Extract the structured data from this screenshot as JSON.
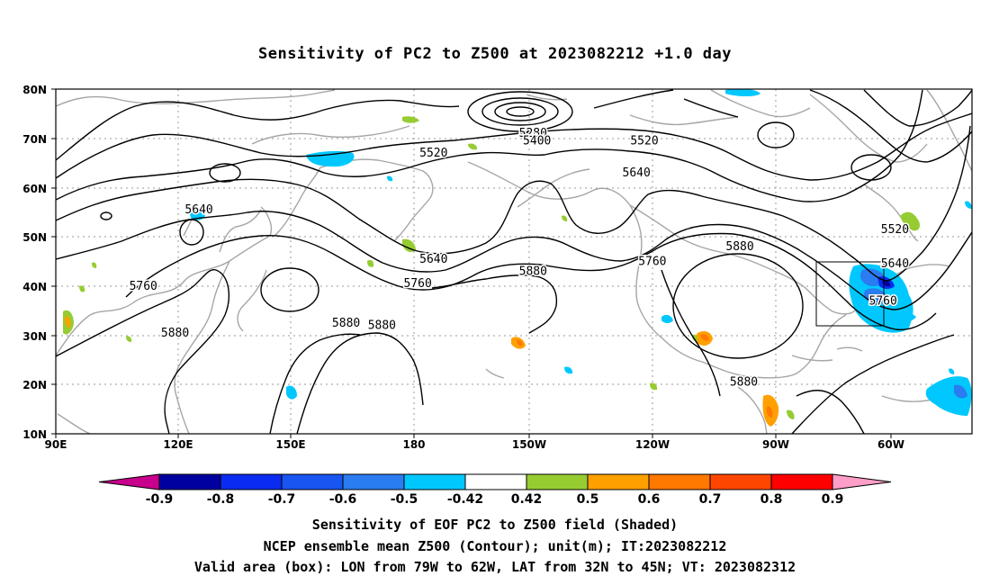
{
  "title": "Sensitivity of PC2 to Z500 at 2023082212 +1.0 day",
  "footer": {
    "line1": "Sensitivity of EOF PC2 to Z500 field (Shaded)",
    "line2": "NCEP ensemble mean Z500 (Contour); unit(m); IT:2023082212",
    "line3": "Valid area (box): LON from 79W to 62W, LAT from 32N to 45N; VT: 2023082312"
  },
  "map": {
    "lat_labels": [
      "80N",
      "70N",
      "60N",
      "50N",
      "40N",
      "30N",
      "20N",
      "10N"
    ],
    "lon_labels": [
      "90E",
      "120E",
      "150E",
      "180",
      "150W",
      "120W",
      "90W",
      "60W"
    ],
    "contour_labels": [
      {
        "text": "5280",
        "lon": -150,
        "lat": 71
      },
      {
        "text": "5400",
        "lon": -149,
        "lat": 69.5
      },
      {
        "text": "5520",
        "lon": -175,
        "lat": 67
      },
      {
        "text": "5520",
        "lon": -122,
        "lat": 69.5
      },
      {
        "text": "5640",
        "lon": -124,
        "lat": 63
      },
      {
        "text": "5520",
        "lon": -59,
        "lat": 51.5
      },
      {
        "text": "5640",
        "lon": 126,
        "lat": 55.5
      },
      {
        "text": "5640",
        "lon": -175,
        "lat": 45.5
      },
      {
        "text": "5640",
        "lon": -59,
        "lat": 44.5
      },
      {
        "text": "5760",
        "lon": 112,
        "lat": 40
      },
      {
        "text": "5760",
        "lon": -179,
        "lat": 40.5
      },
      {
        "text": "5760",
        "lon": -120,
        "lat": 45
      },
      {
        "text": "5760",
        "lon": -62,
        "lat": 37
      },
      {
        "text": "5880",
        "lon": -150,
        "lat": 43
      },
      {
        "text": "5880",
        "lon": -98,
        "lat": 48
      },
      {
        "text": "5880",
        "lon": 120,
        "lat": 30.5
      },
      {
        "text": "5880",
        "lon": 163,
        "lat": 32.5
      },
      {
        "text": "5880",
        "lon": 172,
        "lat": 32
      },
      {
        "text": "5880",
        "lon": -97,
        "lat": 20.5
      }
    ],
    "valid_box": {
      "lon_west": -79,
      "lon_east": -62,
      "lat_south": 32,
      "lat_north": 45
    }
  },
  "colorbar": {
    "labels": [
      "-0.9",
      "-0.8",
      "-0.7",
      "-0.6",
      "-0.5",
      "-0.42",
      "0.42",
      "0.5",
      "0.6",
      "0.7",
      "0.8",
      "0.9"
    ],
    "colors": [
      "#0000a0",
      "#0a2cf0",
      "#1955f0",
      "#2a7cf0",
      "#00c8ff",
      "#ffffff",
      "#96cc32",
      "#ffa000",
      "#ff7800",
      "#ff4600",
      "#ff0000"
    ],
    "low_end_color": "#c8008c",
    "high_end_color": "#ff9ec8"
  }
}
